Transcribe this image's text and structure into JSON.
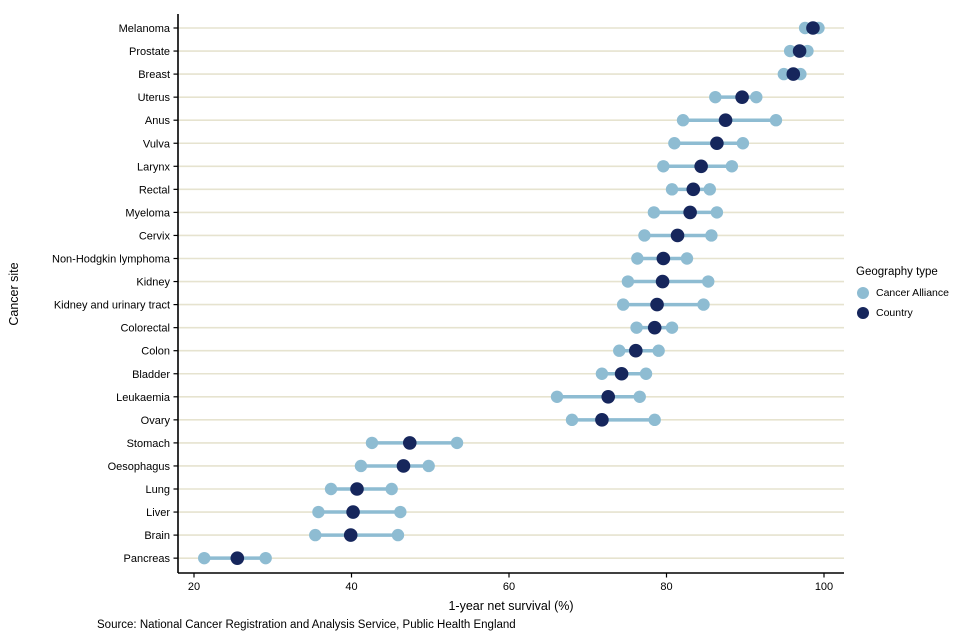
{
  "source": {
    "text": "Source: National Cancer Registration and Analysis Service, Public Health England"
  },
  "chart_data": {
    "type": "dumbbell",
    "title": "",
    "xlabel": "1-year net survival (%)",
    "ylabel": "Cancer site",
    "x_ticks": [
      20,
      40,
      60,
      80,
      100
    ],
    "xlim": [
      17.3,
      102.5
    ],
    "grid": "horizontal-only",
    "legend": {
      "title": "Geography type",
      "position": "right",
      "items": [
        {
          "label": "Cancer Alliance",
          "color": "#8EBCD2"
        },
        {
          "label": "Country",
          "color": "#16265C"
        }
      ]
    },
    "colors": {
      "alliance": "#8EBCD2",
      "country": "#16265C",
      "gridline": "#E6E3CF",
      "axis": "#000000",
      "text": "#000000"
    },
    "categories": [
      "Melanoma",
      "Prostate",
      "Breast",
      "Uterus",
      "Anus",
      "Vulva",
      "Larynx",
      "Rectal",
      "Myeloma",
      "Cervix",
      "Non-Hodgkin lymphoma",
      "Kidney",
      "Kidney and urinary tract",
      "Colorectal",
      "Colon",
      "Bladder",
      "Leukaemia",
      "Ovary",
      "Stomach",
      "Oesophagus",
      "Lung",
      "Liver",
      "Brain",
      "Pancreas"
    ],
    "series": [
      {
        "name": "Cancer Alliance range (min)",
        "values": [
          97.6,
          95.7,
          94.9,
          86.2,
          82.1,
          81.0,
          79.6,
          80.7,
          78.4,
          77.2,
          76.3,
          75.1,
          74.5,
          76.2,
          74.0,
          71.8,
          66.1,
          68.0,
          42.6,
          41.2,
          37.4,
          35.8,
          35.4,
          21.3
        ]
      },
      {
        "name": "Country",
        "values": [
          98.6,
          96.9,
          96.1,
          89.6,
          87.5,
          86.4,
          84.4,
          83.4,
          83.0,
          81.4,
          79.6,
          79.5,
          78.8,
          78.5,
          76.1,
          74.3,
          72.6,
          71.8,
          47.4,
          46.6,
          40.7,
          40.2,
          39.9,
          25.5
        ]
      },
      {
        "name": "Cancer Alliance range (max)",
        "values": [
          99.3,
          97.9,
          97.0,
          91.4,
          93.9,
          89.7,
          88.3,
          85.5,
          86.4,
          85.7,
          82.6,
          85.3,
          84.7,
          80.7,
          79.0,
          77.4,
          76.6,
          78.5,
          53.4,
          49.8,
          45.1,
          46.2,
          45.9,
          29.1
        ]
      }
    ]
  }
}
